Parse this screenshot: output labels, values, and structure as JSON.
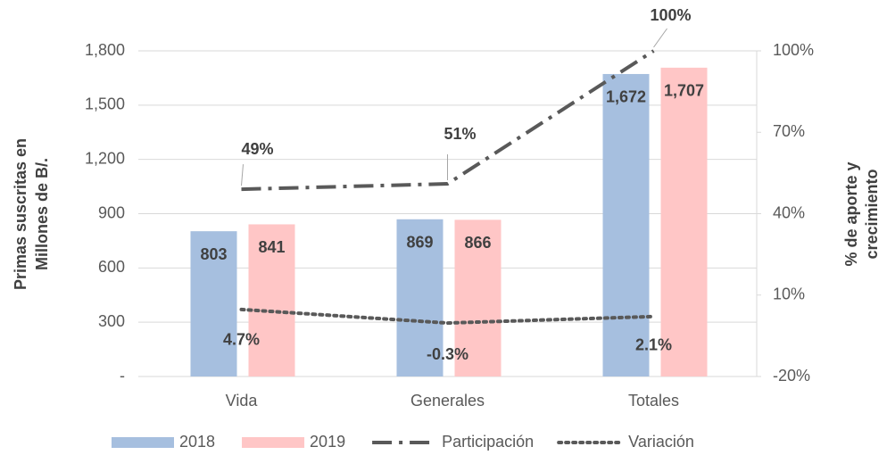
{
  "chart_data": {
    "type": "bar",
    "categories": [
      "Vida",
      "Generales",
      "Totales"
    ],
    "series": [
      {
        "name": "2018",
        "color": "#a6bfdf",
        "values": [
          803,
          869,
          1672
        ],
        "value_labels": [
          "803",
          "869",
          "1,672"
        ]
      },
      {
        "name": "2019",
        "color": "#ffc6c6",
        "values": [
          841,
          866,
          1707
        ],
        "value_labels": [
          "841",
          "866",
          "1,707"
        ]
      },
      {
        "name": "Participación",
        "type": "line",
        "axis": "y2",
        "color": "#595959",
        "dash": "dashdot",
        "values": [
          49,
          51,
          100
        ],
        "value_labels": [
          "49%",
          "51%",
          "100%"
        ]
      },
      {
        "name": "Variación",
        "type": "line",
        "axis": "y2",
        "color": "#595959",
        "dash": "dotted",
        "values": [
          4.7,
          -0.3,
          2.1
        ],
        "value_labels": [
          "4.7%",
          "-0.3%",
          "2.1%"
        ]
      }
    ],
    "y_label": [
      "Primas suscritas en",
      "Millones de B/."
    ],
    "y2_label": [
      "% de aporte y",
      "crecimiento"
    ],
    "ylim": [
      0,
      1800
    ],
    "yticks": [
      {
        "value": 0,
        "label": "-"
      },
      300,
      600,
      900,
      {
        "value": 1200,
        "label": "1,200"
      },
      {
        "value": 1500,
        "label": "1,500"
      },
      {
        "value": 1800,
        "label": "1,800"
      }
    ],
    "y2lim": [
      -20,
      100
    ],
    "y2ticks": [
      {
        "value": -20,
        "label": "-20%"
      },
      {
        "value": 10,
        "label": "10%"
      },
      {
        "value": 40,
        "label": "40%"
      },
      {
        "value": 70,
        "label": "70%"
      },
      {
        "value": 100,
        "label": "100%"
      }
    ],
    "grid": true,
    "legend": "bottom"
  }
}
